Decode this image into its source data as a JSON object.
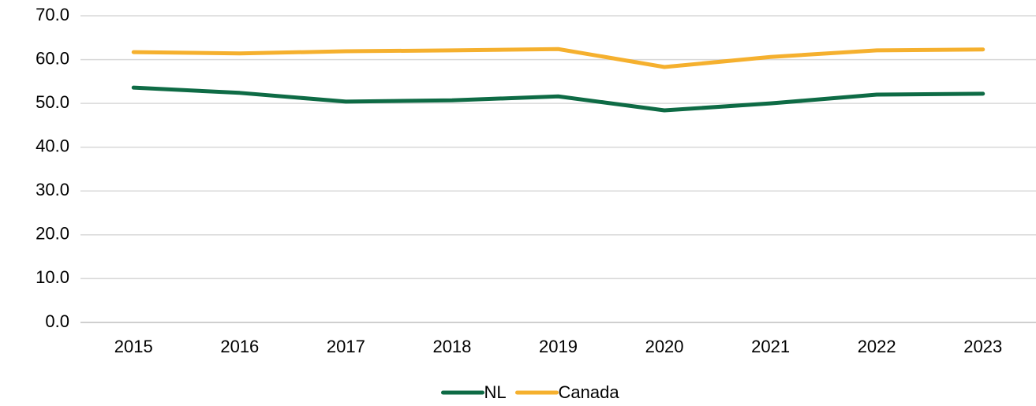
{
  "chart_data": {
    "type": "line",
    "categories": [
      "2015",
      "2016",
      "2017",
      "2018",
      "2019",
      "2020",
      "2021",
      "2022",
      "2023"
    ],
    "series": [
      {
        "name": "NL",
        "color": "#0e6b45",
        "values": [
          53.6,
          52.4,
          50.4,
          50.7,
          51.6,
          48.4,
          50.0,
          52.0,
          52.2
        ]
      },
      {
        "name": "Canada",
        "color": "#f5b02e",
        "values": [
          61.7,
          61.4,
          61.9,
          62.1,
          62.4,
          58.3,
          60.6,
          62.1,
          62.3
        ]
      }
    ],
    "ylim": [
      0,
      70
    ],
    "yticks": [
      {
        "value": 0,
        "label": "0.0"
      },
      {
        "value": 10,
        "label": "10.0"
      },
      {
        "value": 20,
        "label": "20.0"
      },
      {
        "value": 30,
        "label": "30.0"
      },
      {
        "value": 40,
        "label": "40.0"
      },
      {
        "value": 50,
        "label": "50.0"
      },
      {
        "value": 60,
        "label": "60.0"
      },
      {
        "value": 70,
        "label": "70.0"
      }
    ],
    "grid": true,
    "legend": "bottom"
  }
}
